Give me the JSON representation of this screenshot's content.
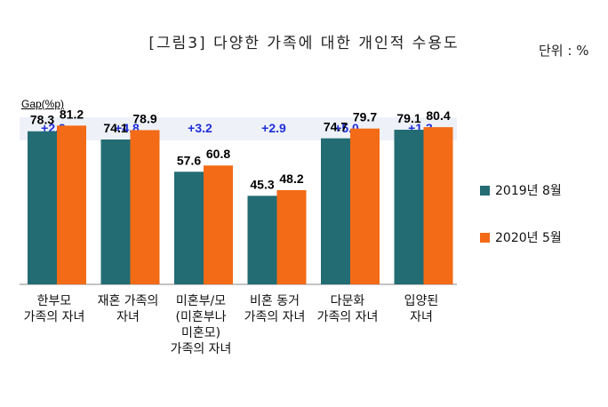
{
  "title": "[그림3] 다양한 가족에 대한 개인적 수용도",
  "unit": "단위 : %",
  "gap_label": "Gap(%p)",
  "colors": {
    "series_2019": "#236c73",
    "series_2020": "#f36b16",
    "gap_text": "#1f2ed8",
    "gap_band": "#eef1f8"
  },
  "chart_data": {
    "type": "bar",
    "categories": [
      "한부모\n가족의 자녀",
      "재혼 가족의\n자녀",
      "미혼부/모\n(미혼부나\n미혼모)\n가족의 자녀",
      "비혼 동거\n가족의 자녀",
      "다문화\n가족의 자녀",
      "입양된\n자녀"
    ],
    "series": [
      {
        "name": "2019년 8월",
        "values": [
          78.3,
          74.1,
          57.6,
          45.3,
          74.7,
          79.1
        ]
      },
      {
        "name": "2020년 5월",
        "values": [
          81.2,
          78.9,
          60.8,
          48.2,
          79.7,
          80.4
        ]
      }
    ],
    "gap": [
      "+2.9",
      "+4.8",
      "+3.2",
      "+2.9",
      "+5.0",
      "+1.3"
    ],
    "ylim": [
      0,
      100
    ],
    "legend_position": "right",
    "grid": false
  }
}
